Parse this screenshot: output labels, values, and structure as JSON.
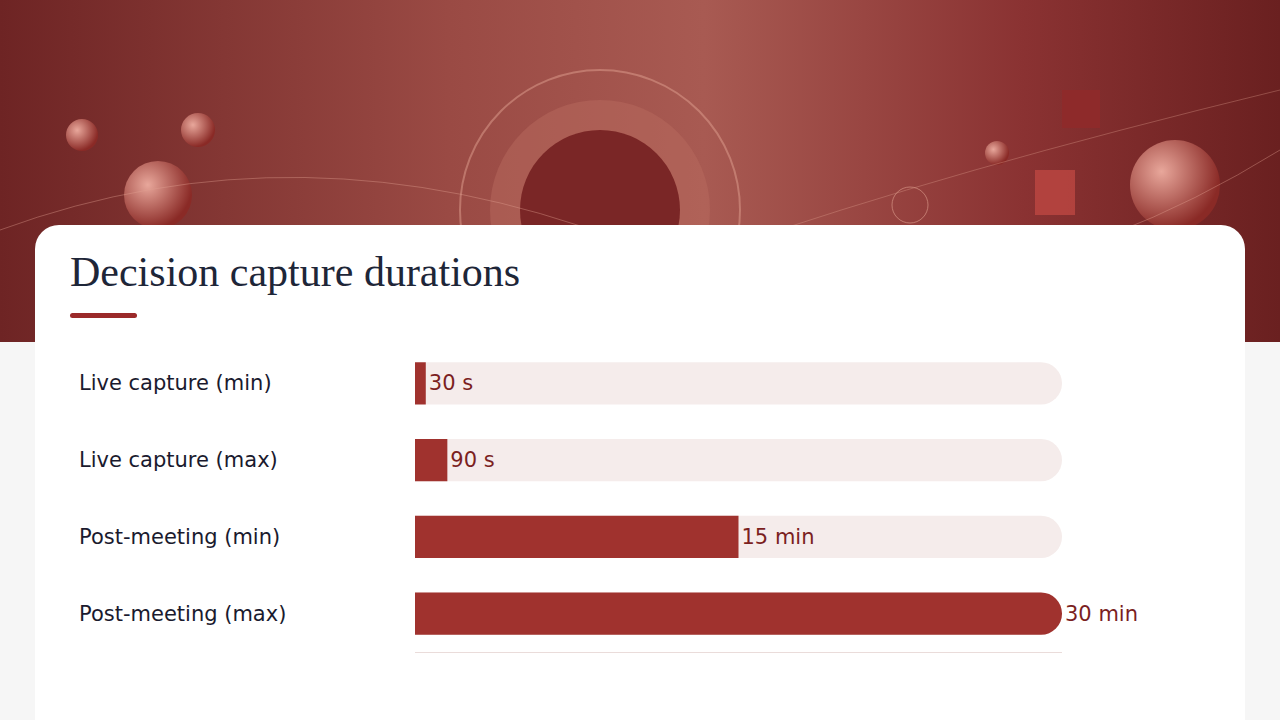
{
  "chart_data": {
    "type": "bar",
    "title": "Decision capture durations",
    "orientation": "horizontal",
    "categories": [
      "Live capture (min)",
      "Live capture (max)",
      "Post-meeting (min)",
      "Post-meeting (max)"
    ],
    "values": [
      30,
      90,
      900,
      1800
    ],
    "value_labels": [
      "30 s",
      "90 s",
      "15 min",
      "30 min"
    ],
    "color": "#a0322e",
    "xlim": [
      0,
      1800
    ],
    "data_labels": true,
    "tick_labels": "y",
    "grid": false
  }
}
